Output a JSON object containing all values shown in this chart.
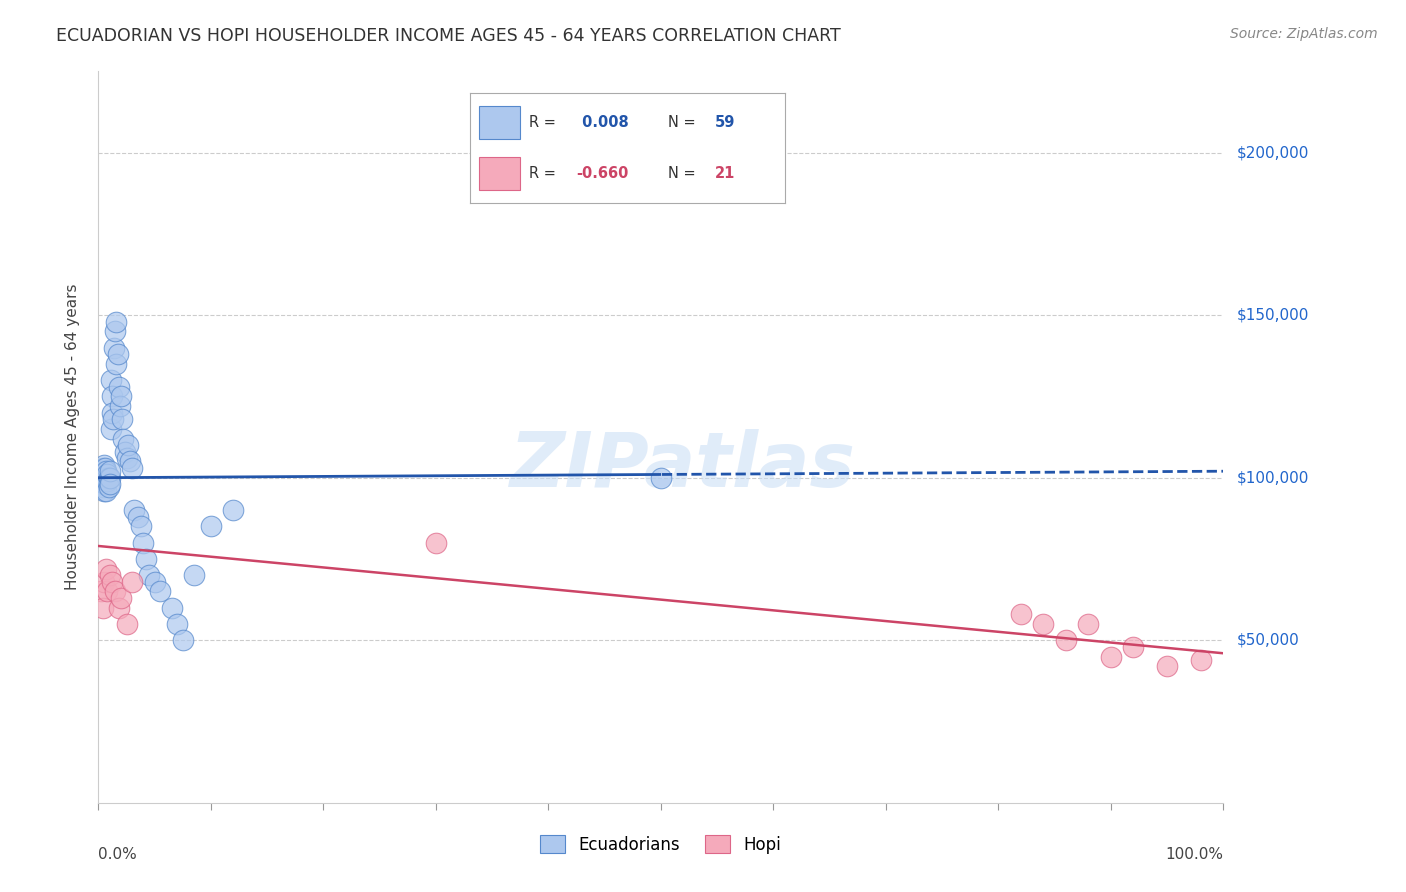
{
  "title": "ECUADORIAN VS HOPI HOUSEHOLDER INCOME AGES 45 - 64 YEARS CORRELATION CHART",
  "source": "Source: ZipAtlas.com",
  "ylabel": "Householder Income Ages 45 - 64 years",
  "watermark": "ZIPatlas",
  "ecuadorian_color": "#adc8ee",
  "ecuadorian_edge_color": "#5588cc",
  "ecuadorian_line_color": "#2255aa",
  "hopi_color": "#f5aabb",
  "hopi_edge_color": "#dd6688",
  "hopi_line_color": "#cc4466",
  "grid_color": "#cccccc",
  "background_color": "#ffffff",
  "ylim": [
    0,
    225000
  ],
  "xlim": [
    0.0,
    1.0
  ],
  "ecu_R": 0.008,
  "ecu_N": 59,
  "hopi_R": -0.66,
  "hopi_N": 21,
  "ecu_x": [
    0.002,
    0.003,
    0.003,
    0.004,
    0.004,
    0.004,
    0.005,
    0.005,
    0.005,
    0.005,
    0.006,
    0.006,
    0.006,
    0.007,
    0.007,
    0.007,
    0.008,
    0.008,
    0.008,
    0.009,
    0.009,
    0.01,
    0.01,
    0.01,
    0.011,
    0.011,
    0.012,
    0.012,
    0.013,
    0.014,
    0.015,
    0.016,
    0.016,
    0.017,
    0.018,
    0.019,
    0.02,
    0.021,
    0.022,
    0.024,
    0.025,
    0.026,
    0.028,
    0.03,
    0.032,
    0.035,
    0.038,
    0.04,
    0.042,
    0.045,
    0.05,
    0.055,
    0.065,
    0.07,
    0.075,
    0.085,
    0.1,
    0.12,
    0.5
  ],
  "ecu_y": [
    100000,
    102000,
    98000,
    100000,
    103000,
    97000,
    99000,
    101000,
    96000,
    104000,
    100000,
    98000,
    103000,
    100000,
    96000,
    102000,
    100000,
    99000,
    101000,
    100000,
    97000,
    100000,
    102000,
    98000,
    130000,
    115000,
    125000,
    120000,
    118000,
    140000,
    145000,
    148000,
    135000,
    138000,
    128000,
    122000,
    125000,
    118000,
    112000,
    108000,
    106000,
    110000,
    105000,
    103000,
    90000,
    88000,
    85000,
    80000,
    75000,
    70000,
    68000,
    65000,
    60000,
    55000,
    50000,
    70000,
    85000,
    90000,
    100000
  ],
  "hopi_x": [
    0.002,
    0.004,
    0.005,
    0.007,
    0.008,
    0.01,
    0.012,
    0.015,
    0.018,
    0.02,
    0.025,
    0.03,
    0.3,
    0.82,
    0.84,
    0.86,
    0.88,
    0.9,
    0.92,
    0.95,
    0.98
  ],
  "hopi_y": [
    65000,
    60000,
    68000,
    72000,
    65000,
    70000,
    68000,
    65000,
    60000,
    63000,
    55000,
    68000,
    80000,
    58000,
    55000,
    50000,
    55000,
    45000,
    48000,
    42000,
    44000
  ]
}
